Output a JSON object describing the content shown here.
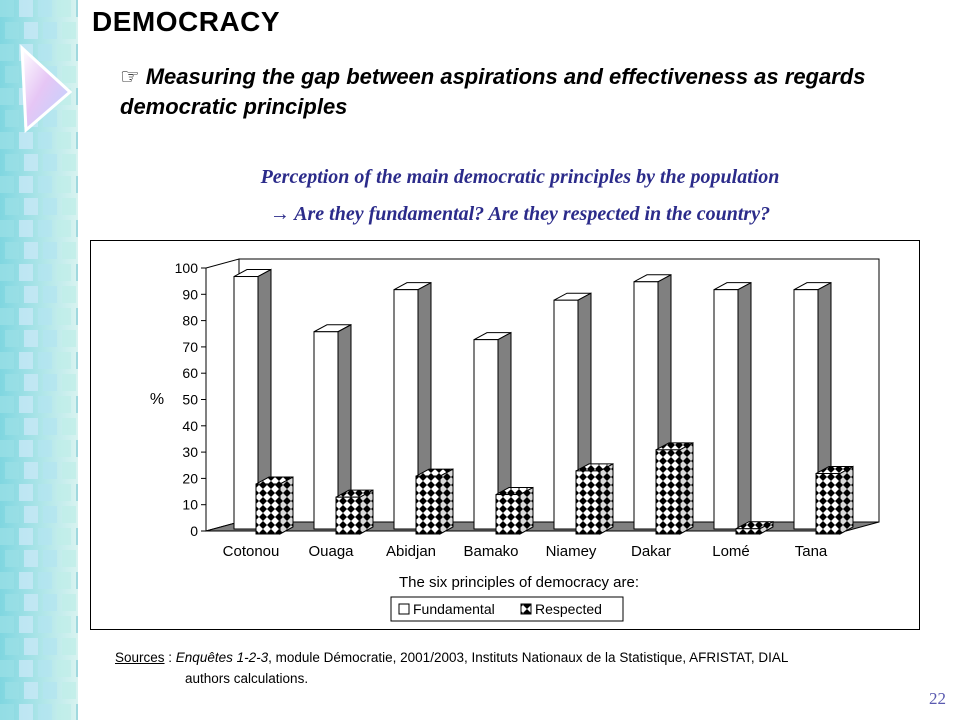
{
  "title": "DEMOCRACY",
  "subtitle_bullet": "☞",
  "subtitle": "Measuring the gap between aspirations and effectiveness as regards democratic principles",
  "caption_line1": "Perception of the main democratic principles by the population",
  "caption_arrow": "→",
  "caption_line2": "Are they fundamental? Are they respected in the country?",
  "sources": {
    "label": "Sources",
    "sep": " : ",
    "italic": "Enquêtes 1-2-3",
    "rest": ", module Démocratie, 2001/2003, Instituts Nationaux de la Statistique, AFRISTAT, DIAL",
    "line2": "authors calculations."
  },
  "page_number": "22",
  "colors": {
    "caption": "#2b2b8a",
    "page_number": "#5a5ab0",
    "bar_side": "#808080",
    "floor": "#808080"
  },
  "chart_data": {
    "type": "bar",
    "three_d": true,
    "categories": [
      "Cotonou",
      "Ouaga",
      "Abidjan",
      "Bamako",
      "Niamey",
      "Dakar",
      "Lomé",
      "Tana"
    ],
    "series": [
      {
        "name": "Fundamental",
        "values": [
          96,
          75,
          91,
          72,
          87,
          94,
          91,
          91
        ],
        "pattern": "white"
      },
      {
        "name": "Respected",
        "values": [
          19,
          14,
          22,
          15,
          24,
          32,
          2,
          23
        ],
        "pattern": "checker"
      }
    ],
    "ylabel": "%",
    "xlabel": "The six principles of democracy are:",
    "ylim": [
      0,
      100
    ],
    "yticks": [
      0,
      10,
      20,
      30,
      40,
      50,
      60,
      70,
      80,
      90,
      100
    ],
    "legend_position": "bottom",
    "grid": false
  }
}
